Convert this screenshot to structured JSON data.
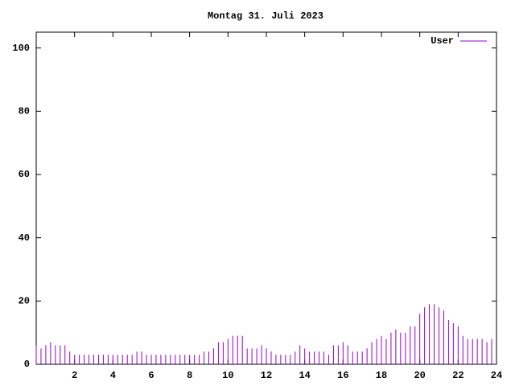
{
  "chart_data": {
    "type": "impulse",
    "title": "Montag 31. Juli 2023",
    "x": [
      0,
      0.25,
      0.5,
      0.75,
      1,
      1.25,
      1.5,
      1.75,
      2,
      2.25,
      2.5,
      2.75,
      3,
      3.25,
      3.5,
      3.75,
      4,
      4.25,
      4.5,
      4.75,
      5,
      5.25,
      5.5,
      5.75,
      6,
      6.25,
      6.5,
      6.75,
      7,
      7.25,
      7.5,
      7.75,
      8,
      8.25,
      8.5,
      8.75,
      9,
      9.25,
      9.5,
      9.75,
      10,
      10.25,
      10.5,
      10.75,
      11,
      11.25,
      11.5,
      11.75,
      12,
      12.25,
      12.5,
      12.75,
      13,
      13.25,
      13.5,
      13.75,
      14,
      14.25,
      14.5,
      14.75,
      15,
      15.25,
      15.5,
      15.75,
      16,
      16.25,
      16.5,
      16.75,
      17,
      17.25,
      17.5,
      17.75,
      18,
      18.25,
      18.5,
      18.75,
      19,
      19.25,
      19.5,
      19.75,
      20,
      20.25,
      20.5,
      20.75,
      21,
      21.25,
      21.5,
      21.75,
      22,
      22.25,
      22.5,
      22.75,
      23,
      23.25,
      23.5,
      23.75
    ],
    "series": [
      {
        "name": "User",
        "color": "#9400d3",
        "values": [
          6,
          5,
          6,
          7,
          6,
          6,
          6,
          4,
          3,
          3,
          3,
          3,
          3,
          3,
          3,
          3,
          3,
          3,
          3,
          3,
          3,
          4,
          4,
          3,
          3,
          3,
          3,
          3,
          3,
          3,
          3,
          3,
          3,
          3,
          3,
          4,
          4,
          5,
          7,
          7,
          8,
          9,
          9,
          9,
          5,
          5,
          5,
          6,
          5,
          4,
          3,
          3,
          3,
          3,
          4,
          6,
          5,
          4,
          4,
          4,
          4,
          3,
          6,
          6,
          7,
          6,
          4,
          4,
          4,
          5,
          7,
          8,
          9,
          8,
          10,
          11,
          10,
          10,
          12,
          12,
          16,
          18,
          19,
          19,
          18,
          17,
          14,
          13,
          12,
          9,
          8,
          8,
          8,
          8,
          7,
          8
        ]
      }
    ],
    "xlim": [
      0,
      24
    ],
    "xticks": [
      2,
      4,
      6,
      8,
      10,
      12,
      14,
      16,
      18,
      20,
      22,
      24
    ],
    "ylim": [
      0,
      105
    ],
    "yticks": [
      0,
      20,
      40,
      60,
      80,
      100
    ],
    "legend": "top-right"
  }
}
